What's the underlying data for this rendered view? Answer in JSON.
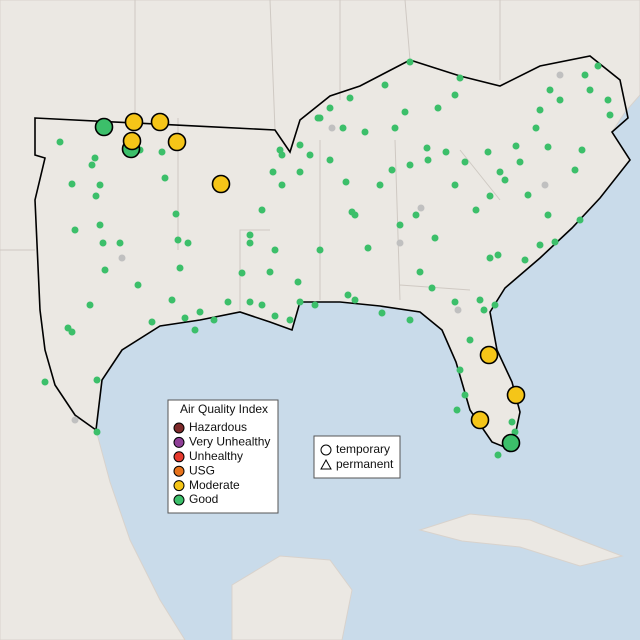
{
  "legend": {
    "title": "Air Quality Index",
    "items": [
      {
        "label": "Hazardous",
        "color": "#7e2a2a"
      },
      {
        "label": "Very Unhealthy",
        "color": "#8f3f97"
      },
      {
        "label": "Unhealthy",
        "color": "#e63a2e"
      },
      {
        "label": "USG",
        "color": "#e8731c"
      },
      {
        "label": "Moderate",
        "color": "#f5c518"
      },
      {
        "label": "Good",
        "color": "#3cbf6a"
      }
    ]
  },
  "shape_legend": {
    "items": [
      {
        "label": "temporary"
      },
      {
        "label": "permanent"
      }
    ]
  }
}
